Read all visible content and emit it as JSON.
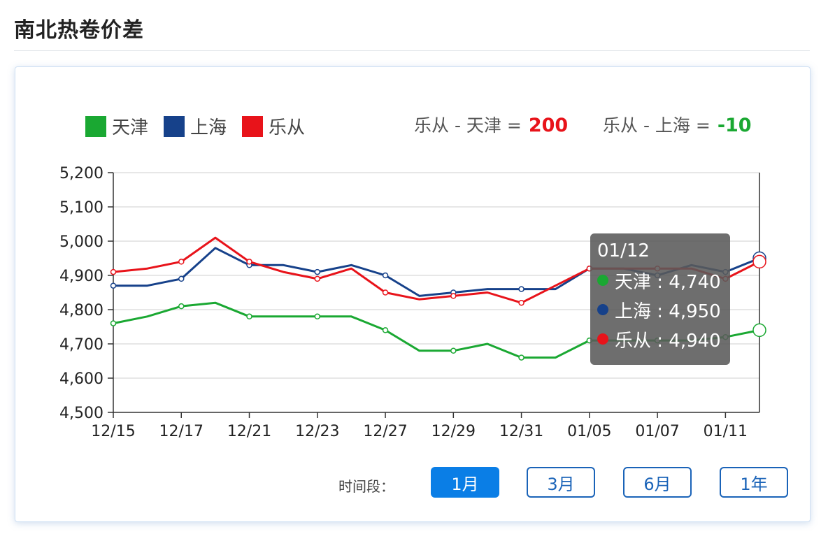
{
  "page": {
    "title": "南北热卷价差"
  },
  "legend": [
    {
      "name": "天津",
      "color": "#1aa832"
    },
    {
      "name": "上海",
      "color": "#16418a"
    },
    {
      "name": "乐从",
      "color": "#e8131a"
    }
  ],
  "spreads": [
    {
      "label": "乐从 - 天津 =",
      "value": "200",
      "color": "#e8131a"
    },
    {
      "label": "乐从 - 上海 =",
      "value": "-10",
      "color": "#1aa832"
    }
  ],
  "tooltip": {
    "title": "01/12",
    "rows": [
      {
        "text": "天津 : 4,740",
        "color": "#1aa832"
      },
      {
        "text": "上海 : 4,950",
        "color": "#16418a"
      },
      {
        "text": "乐从 : 4,940",
        "color": "#e8131a"
      }
    ]
  },
  "period": {
    "label": "时间段：",
    "options": [
      "1月",
      "3月",
      "6月",
      "1年"
    ],
    "selected": "1月"
  },
  "chart_data": {
    "type": "line",
    "x": [
      "12/15",
      "12/16",
      "12/17",
      "12/18",
      "12/21",
      "12/22",
      "12/23",
      "12/24",
      "12/27",
      "12/28",
      "12/29",
      "12/30",
      "12/31",
      "01/04",
      "01/05",
      "01/06",
      "01/07",
      "01/08",
      "01/11",
      "01/12"
    ],
    "x_tick_labels": [
      "12/15",
      "12/17",
      "12/21",
      "12/23",
      "12/27",
      "12/29",
      "12/31",
      "01/05",
      "01/07",
      "01/11"
    ],
    "y_tick_labels": [
      "5,200",
      "5,100",
      "5,000",
      "4,900",
      "4,800",
      "4,700",
      "4,600",
      "4,500"
    ],
    "ylim": [
      4500,
      5200
    ],
    "grid": true,
    "series": [
      {
        "name": "天津",
        "color": "#1aa832",
        "values": [
          4760,
          4780,
          4810,
          4820,
          4780,
          4780,
          4780,
          4780,
          4740,
          4680,
          4680,
          4700,
          4660,
          4660,
          4710,
          4710,
          4710,
          4710,
          4720,
          4740
        ]
      },
      {
        "name": "上海",
        "color": "#16418a",
        "values": [
          4870,
          4870,
          4890,
          4980,
          4930,
          4930,
          4910,
          4930,
          4900,
          4840,
          4850,
          4860,
          4860,
          4860,
          4920,
          4920,
          4900,
          4930,
          4910,
          4950
        ]
      },
      {
        "name": "乐从",
        "color": "#e8131a",
        "values": [
          4910,
          4920,
          4940,
          5010,
          4940,
          4910,
          4890,
          4920,
          4850,
          4830,
          4840,
          4850,
          4820,
          4870,
          4920,
          4920,
          4920,
          4920,
          4890,
          4940
        ]
      }
    ]
  }
}
